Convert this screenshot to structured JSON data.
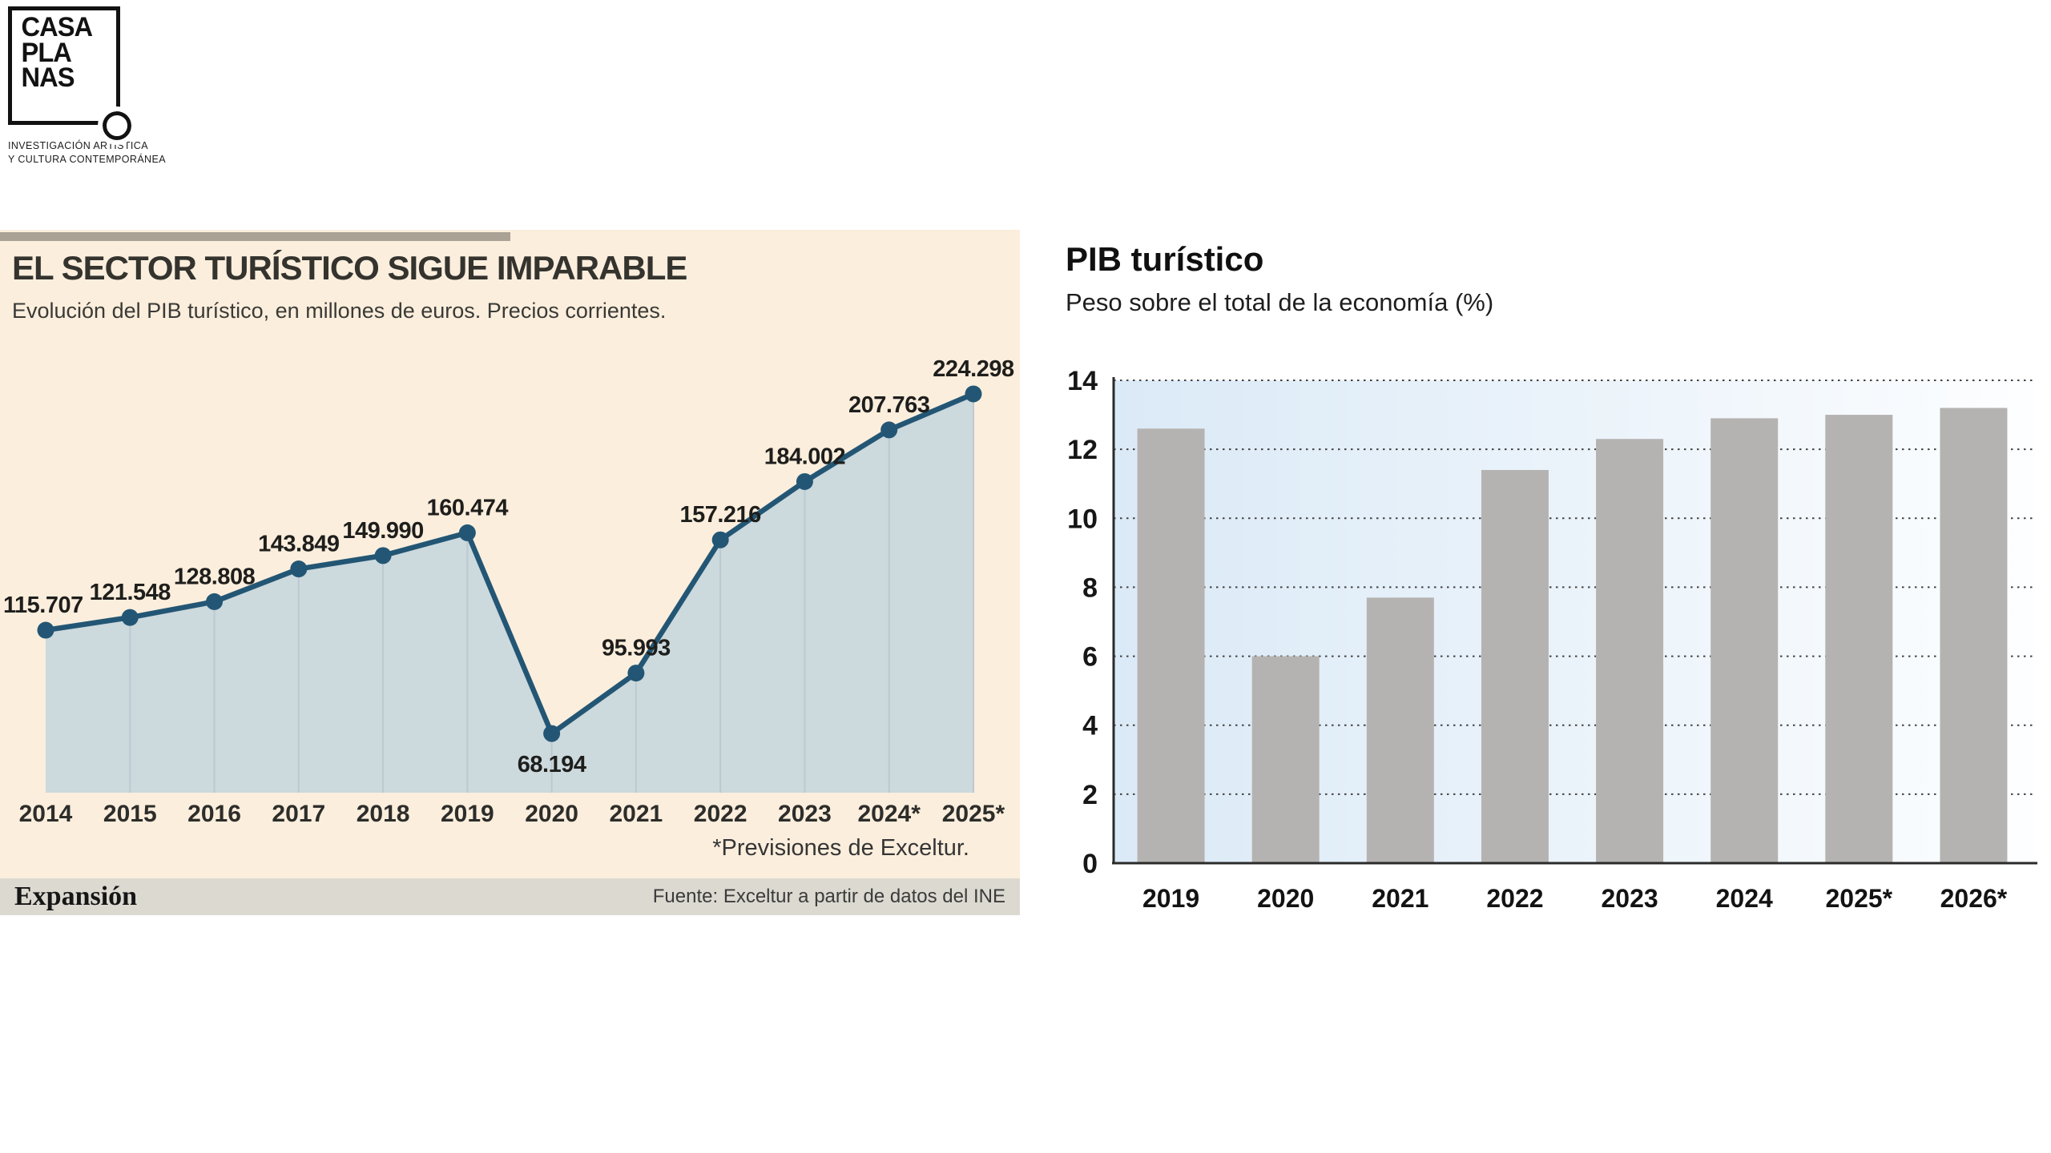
{
  "logo": {
    "lines": [
      "CASA",
      "PLA",
      "NAS"
    ],
    "tagline_lines": [
      "INVESTIGACIÓN ARTÍSTICA",
      "Y CULTURA CONTEMPORÁNEA"
    ]
  },
  "chart_data": [
    {
      "type": "area",
      "title": "EL SECTOR TURÍSTICO SIGUE IMPARABLE",
      "subtitle": "Evolución del PIB turístico, en millones de euros. Precios corrientes.",
      "categories": [
        "2014",
        "2015",
        "2016",
        "2017",
        "2018",
        "2019",
        "2020",
        "2021",
        "2022",
        "2023",
        "2024*",
        "2025*"
      ],
      "values": [
        115707,
        121548,
        128808,
        143849,
        149990,
        160474,
        68194,
        95993,
        157216,
        184002,
        207763,
        224298
      ],
      "labels": [
        "115.707",
        "121.548",
        "128.808",
        "143.849",
        "149.990",
        "160.474",
        "68.194",
        "95.993",
        "157.216",
        "184.002",
        "207.763",
        "224.298"
      ],
      "footnote": "*Previsiones de Exceltur.",
      "brand": "Expansión",
      "source": "Fuente: Exceltur a partir de datos del INE",
      "line_color": "#235674",
      "dot_color": "#235674",
      "fill_color": "#ccd9dd",
      "grid_color": "#bcc9d0",
      "panel_bg": "#fbeedd",
      "legend_position": "none",
      "grid": "vertical-inside-area"
    },
    {
      "type": "bar",
      "title": "PIB turístico",
      "subtitle": "Peso sobre el total de la economía (%)",
      "categories": [
        "2019",
        "2020",
        "2021",
        "2022",
        "2023",
        "2024",
        "2025*",
        "2026*"
      ],
      "values": [
        12.6,
        6.0,
        7.7,
        11.4,
        12.3,
        12.9,
        13.0,
        13.2
      ],
      "ylim": [
        0,
        14
      ],
      "yticks": [
        0,
        2,
        4,
        6,
        8,
        10,
        12,
        14
      ],
      "xlabel": "",
      "ylabel": "",
      "bar_color": "#b5b3b1",
      "plot_bg_gradient": [
        "#dbeaf7",
        "#fdfeff"
      ],
      "grid": "dotted-horizontal",
      "legend_position": "none"
    }
  ]
}
